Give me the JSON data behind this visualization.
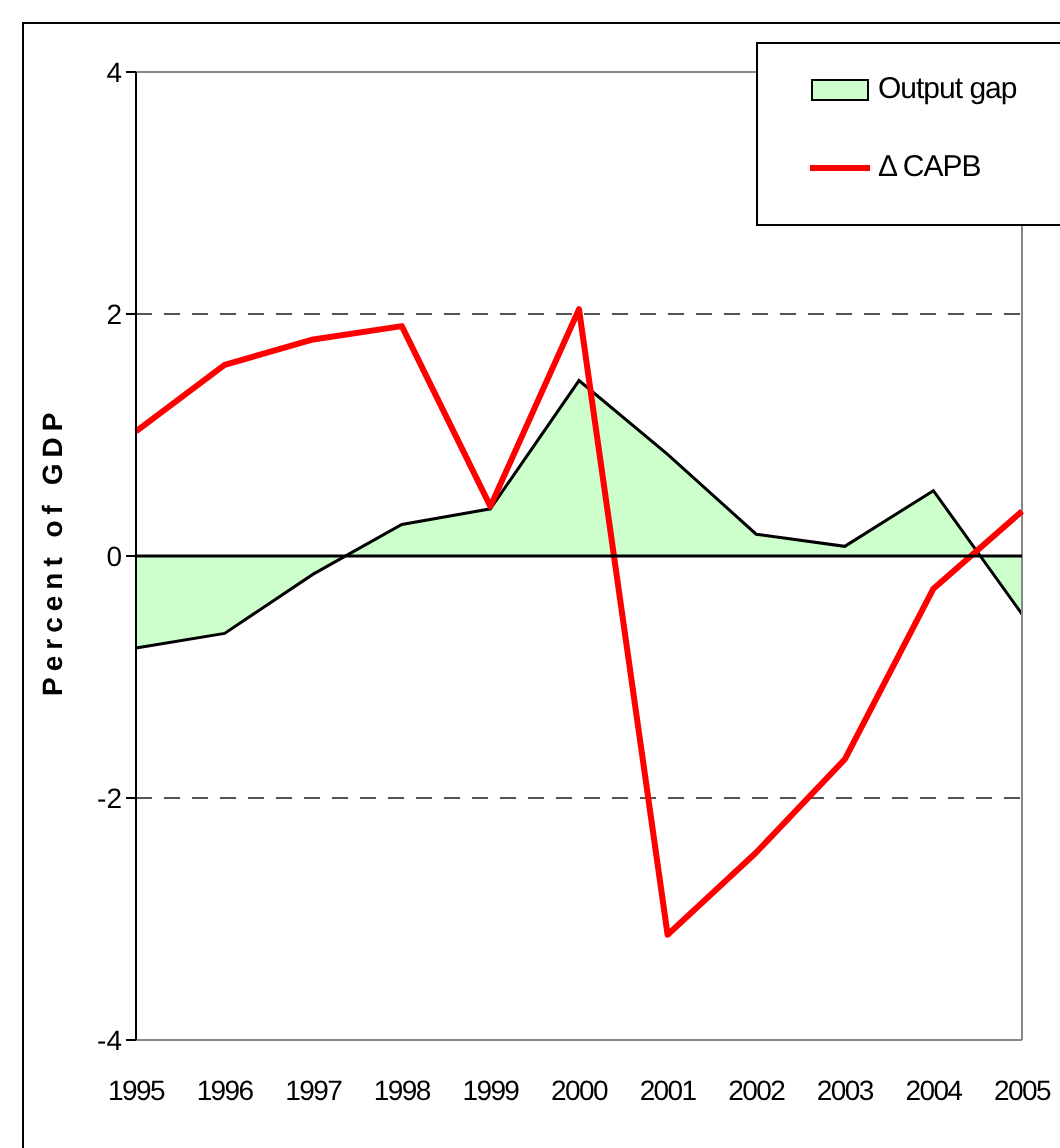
{
  "chart_data": {
    "type": "area",
    "ylabel": "Percent of GDP",
    "categories": [
      "1995",
      "1996",
      "1997",
      "1998",
      "1999",
      "2000",
      "2001",
      "2002",
      "2003",
      "2004",
      "2005"
    ],
    "series": [
      {
        "name": "Output gap",
        "color": "#ccffcc",
        "values": [
          -0.76,
          -0.64,
          -0.15,
          0.26,
          0.39,
          1.45,
          0.84,
          0.18,
          0.08,
          0.54,
          -0.48
        ]
      },
      {
        "name": "Δ CAPB",
        "type": "line",
        "color": "#ff0000",
        "values": [
          1.03,
          1.58,
          1.79,
          1.9,
          0.41,
          2.04,
          -3.13,
          -2.45,
          -1.68,
          -0.27,
          0.37
        ]
      }
    ],
    "ylim": [
      -4,
      4
    ],
    "yticks": [
      -4,
      -2,
      0,
      2,
      4
    ],
    "grid": "y",
    "line_style": "solid",
    "marker": "none",
    "legend": "top right",
    "ref_lines": [
      {
        "axis": "y",
        "value": 0,
        "color": "#000000"
      }
    ]
  }
}
